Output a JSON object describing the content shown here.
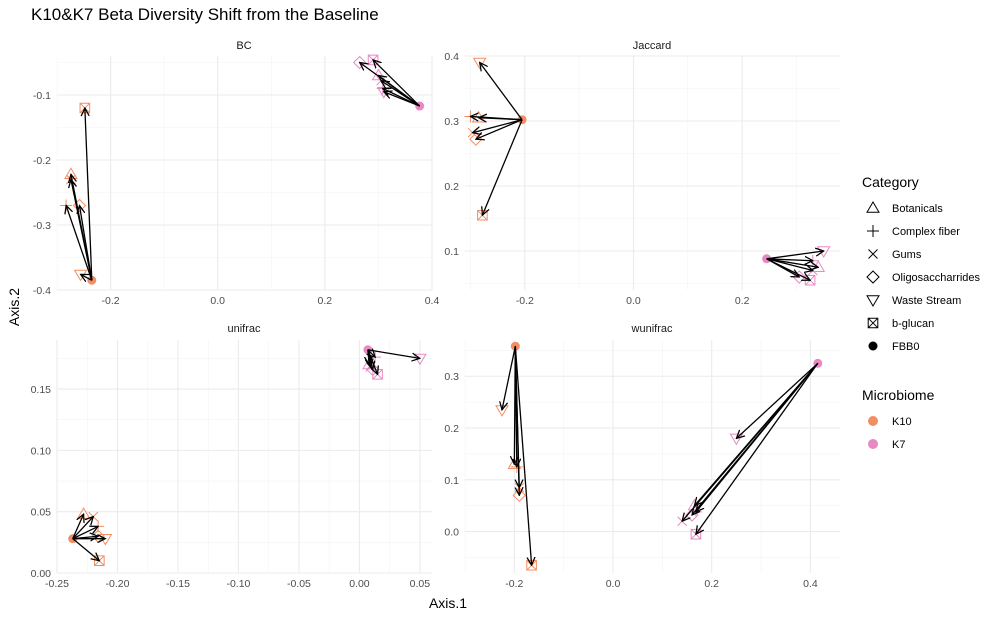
{
  "title": "K10&K7 Beta Diversity Shift from the Baseline",
  "xlabel": "Axis.1",
  "ylabel": "Axis.2",
  "colors": {
    "K10": "#f28e63",
    "K7": "#e78ac3"
  },
  "legend": {
    "category_title": "Category",
    "categories": [
      {
        "name": "Botanicals",
        "shape": "triangle-up"
      },
      {
        "name": "Complex fiber",
        "shape": "plus"
      },
      {
        "name": "Gums",
        "shape": "cross"
      },
      {
        "name": "Oligosaccharrides",
        "shape": "diamond"
      },
      {
        "name": "Waste Stream",
        "shape": "triangle-down"
      },
      {
        "name": "b-glucan",
        "shape": "square-cross"
      },
      {
        "name": "FBB0",
        "shape": "filled-circle"
      }
    ],
    "microbiome_title": "Microbiome",
    "microbiomes": [
      {
        "name": "K10"
      },
      {
        "name": "K7"
      }
    ]
  },
  "chart_data": [
    {
      "type": "scatter",
      "panel": "BC",
      "xlim": [
        -0.3,
        0.4
      ],
      "ylim": [
        -0.4,
        -0.04
      ],
      "xticks": [
        -0.2,
        0.0,
        0.2,
        0.4
      ],
      "xtick_labels": [
        "-0.2",
        "0.0",
        "0.2",
        "0.4"
      ],
      "yticks": [
        -0.4,
        -0.3,
        -0.2,
        -0.1
      ],
      "ytick_labels": [
        "-0.4",
        "-0.3",
        "-0.2",
        "-0.1"
      ],
      "grid": true,
      "series": [
        {
          "name": "K10",
          "baseline": [
            -0.235,
            -0.385
          ],
          "points": [
            {
              "cat": "b-glucan",
              "x": -0.248,
              "y": -0.12
            },
            {
              "cat": "Botanicals",
              "x": -0.274,
              "y": -0.222
            },
            {
              "cat": "Gums",
              "x": -0.274,
              "y": -0.23
            },
            {
              "cat": "Complex fiber",
              "x": -0.283,
              "y": -0.27
            },
            {
              "cat": "Oligosaccharrides",
              "x": -0.258,
              "y": -0.27
            },
            {
              "cat": "Waste Stream",
              "x": -0.256,
              "y": -0.376
            }
          ]
        },
        {
          "name": "K7",
          "baseline": [
            0.377,
            -0.117
          ],
          "points": [
            {
              "cat": "Oligosaccharrides",
              "x": 0.265,
              "y": -0.05
            },
            {
              "cat": "b-glucan",
              "x": 0.29,
              "y": -0.046
            },
            {
              "cat": "Botanicals",
              "x": 0.3,
              "y": -0.07
            },
            {
              "cat": "Gums",
              "x": 0.305,
              "y": -0.078
            },
            {
              "cat": "Complex fiber",
              "x": 0.308,
              "y": -0.09
            },
            {
              "cat": "Waste Stream",
              "x": 0.31,
              "y": -0.095
            }
          ]
        }
      ]
    },
    {
      "type": "scatter",
      "panel": "Jaccard",
      "xlim": [
        -0.31,
        0.38
      ],
      "ylim": [
        0.04,
        0.4
      ],
      "xticks": [
        -0.2,
        0.0,
        0.2
      ],
      "xtick_labels": [
        "-0.2",
        "0.0",
        "0.2"
      ],
      "yticks": [
        0.1,
        0.2,
        0.3,
        0.4
      ],
      "ytick_labels": [
        "0.1",
        "0.2",
        "0.3",
        "0.4"
      ],
      "grid": true,
      "series": [
        {
          "name": "K10",
          "baseline": [
            -0.205,
            0.302
          ],
          "points": [
            {
              "cat": "Waste Stream",
              "x": -0.283,
              "y": 0.39
            },
            {
              "cat": "Complex fiber",
              "x": -0.3,
              "y": 0.307
            },
            {
              "cat": "Botanicals",
              "x": -0.285,
              "y": 0.305
            },
            {
              "cat": "Gums",
              "x": -0.296,
              "y": 0.282
            },
            {
              "cat": "Oligosaccharrides",
              "x": -0.29,
              "y": 0.272
            },
            {
              "cat": "b-glucan",
              "x": -0.278,
              "y": 0.155
            }
          ]
        },
        {
          "name": "K7",
          "baseline": [
            0.245,
            0.088
          ],
          "points": [
            {
              "cat": "Waste Stream",
              "x": 0.35,
              "y": 0.1
            },
            {
              "cat": "Complex fiber",
              "x": 0.33,
              "y": 0.085
            },
            {
              "cat": "Botanicals",
              "x": 0.34,
              "y": 0.075
            },
            {
              "cat": "Gums",
              "x": 0.33,
              "y": 0.07
            },
            {
              "cat": "Oligosaccharrides",
              "x": 0.305,
              "y": 0.06
            },
            {
              "cat": "b-glucan",
              "x": 0.325,
              "y": 0.055
            }
          ]
        }
      ]
    },
    {
      "type": "scatter",
      "panel": "unifrac",
      "xlim": [
        -0.25,
        0.06
      ],
      "ylim": [
        0.0,
        0.19
      ],
      "xticks": [
        -0.25,
        -0.2,
        -0.15,
        -0.1,
        -0.05,
        0.0,
        0.05
      ],
      "xtick_labels": [
        "-0.25",
        "-0.20",
        "-0.15",
        "-0.10",
        "-0.05",
        "0.00",
        "0.05"
      ],
      "yticks": [
        0.0,
        0.05,
        0.1,
        0.15
      ],
      "ytick_labels": [
        "0.00",
        "0.05",
        "0.10",
        "0.15"
      ],
      "grid": true,
      "series": [
        {
          "name": "K10",
          "baseline": [
            -0.237,
            0.028
          ],
          "points": [
            {
              "cat": "Botanicals",
              "x": -0.228,
              "y": 0.048
            },
            {
              "cat": "Gums",
              "x": -0.22,
              "y": 0.046
            },
            {
              "cat": "Complex fiber",
              "x": -0.216,
              "y": 0.038
            },
            {
              "cat": "Oligosaccharrides",
              "x": -0.216,
              "y": 0.03
            },
            {
              "cat": "Waste Stream",
              "x": -0.21,
              "y": 0.028
            },
            {
              "cat": "b-glucan",
              "x": -0.215,
              "y": 0.01
            }
          ]
        },
        {
          "name": "K7",
          "baseline": [
            0.007,
            0.182
          ],
          "points": [
            {
              "cat": "Waste Stream",
              "x": 0.05,
              "y": 0.175
            },
            {
              "cat": "Complex fiber",
              "x": 0.013,
              "y": 0.176
            },
            {
              "cat": "Botanicals",
              "x": 0.008,
              "y": 0.17
            },
            {
              "cat": "Gums",
              "x": 0.009,
              "y": 0.168
            },
            {
              "cat": "Oligosaccharrides",
              "x": 0.011,
              "y": 0.166
            },
            {
              "cat": "b-glucan",
              "x": 0.015,
              "y": 0.162
            }
          ]
        }
      ]
    },
    {
      "type": "scatter",
      "panel": "wunifrac",
      "xlim": [
        -0.3,
        0.46
      ],
      "ylim": [
        -0.08,
        0.37
      ],
      "xticks": [
        -0.2,
        0.0,
        0.2,
        0.4
      ],
      "xtick_labels": [
        "-0.2",
        "0.0",
        "0.2",
        "0.4"
      ],
      "yticks": [
        0.0,
        0.1,
        0.2,
        0.3
      ],
      "ytick_labels": [
        "0.0",
        "0.1",
        "0.2",
        "0.3"
      ],
      "grid": true,
      "series": [
        {
          "name": "K10",
          "baseline": [
            -0.198,
            0.358
          ],
          "points": [
            {
              "cat": "Waste Stream",
              "x": -0.225,
              "y": 0.235
            },
            {
              "cat": "Botanicals",
              "x": -0.2,
              "y": 0.13
            },
            {
              "cat": "Complex fiber",
              "x": -0.195,
              "y": 0.125
            },
            {
              "cat": "Gums",
              "x": -0.19,
              "y": 0.085
            },
            {
              "cat": "Oligosaccharrides",
              "x": -0.19,
              "y": 0.07
            },
            {
              "cat": "b-glucan",
              "x": -0.165,
              "y": -0.065
            }
          ]
        },
        {
          "name": "K7",
          "baseline": [
            0.415,
            0.325
          ],
          "points": [
            {
              "cat": "Waste Stream",
              "x": 0.25,
              "y": 0.18
            },
            {
              "cat": "Botanicals",
              "x": 0.165,
              "y": 0.05
            },
            {
              "cat": "Complex fiber",
              "x": 0.168,
              "y": 0.038
            },
            {
              "cat": "Oligosaccharrides",
              "x": 0.16,
              "y": 0.032
            },
            {
              "cat": "Gums",
              "x": 0.14,
              "y": 0.02
            },
            {
              "cat": "b-glucan",
              "x": 0.168,
              "y": -0.005
            }
          ]
        }
      ]
    }
  ]
}
